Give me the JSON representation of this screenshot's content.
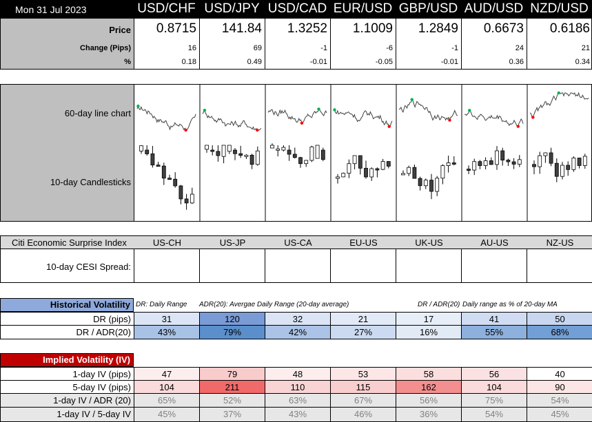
{
  "header": {
    "date": "Mon 31 Jul 2023",
    "pairs": [
      "USD/CHF",
      "USD/JPY",
      "USD/CAD",
      "EUR/USD",
      "GBP/USD",
      "AUD/USD",
      "NZD/USD"
    ]
  },
  "price_table": {
    "price_label": "Price",
    "change_label": "Change (Pips)",
    "pct_label": "%",
    "prices": [
      "0.8715",
      "141.84",
      "1.3252",
      "1.1009",
      "1.2849",
      "0.6673",
      "0.6186"
    ],
    "changes": [
      "16",
      "69",
      "-1",
      "-6",
      "-1",
      "24",
      "21"
    ],
    "pcts": [
      "0.18",
      "0.49",
      "-0.01",
      "-0.05",
      "-0.01",
      "0.36",
      "0.34"
    ]
  },
  "charts_section": {
    "line_label": "60-day line chart",
    "candle_label": "10-day Candlesticks",
    "line_color": "#404040",
    "high_marker_color": "#00b050",
    "low_marker_color": "#ff0000"
  },
  "cesi": {
    "title": "Citi Economic Surprise Index",
    "spread_label": "10-day CESI Spread:",
    "pairs": [
      "US-CH",
      "US-JP",
      "US-CA",
      "EU-US",
      "UK-US",
      "AU-US",
      "NZ-US"
    ],
    "bar_color": "#a6a6a6"
  },
  "historical_volatility": {
    "title": "Historical Volatility",
    "note_dr": "DR: Daily Range",
    "note_adr": "ADR(20): Avergae Daily Range (20-day average)",
    "note_ratio": "DR / ADR(20)",
    "note_ratio_desc": "Daily range as % of 20-day MA",
    "dr_label": "DR (pips)",
    "ratio_label": "DR / ADR(20)",
    "dr_values": [
      "31",
      "120",
      "32",
      "21",
      "17",
      "41",
      "50"
    ],
    "ratio_values": [
      "43%",
      "79%",
      "42%",
      "27%",
      "16%",
      "55%",
      "68%"
    ],
    "dr_colors": [
      "#dbe5f5",
      "#7a9bd6",
      "#dae4f5",
      "#e3eaf7",
      "#e8eef8",
      "#d0dcf2",
      "#c8d6ef"
    ],
    "ratio_colors": [
      "#a8c2e6",
      "#5b8fcc",
      "#aac3e6",
      "#cbdaf0",
      "#e2eaf6",
      "#8db0dd",
      "#729fd5"
    ]
  },
  "implied_volatility": {
    "title": "Implied Volatility (IV)",
    "iv1_label": "1-day IV (pips)",
    "iv5_label": "5-day IV (pips)",
    "ratio_adr_label": "1-day IV / ADR (20)",
    "ratio_5d_label": "1-day IV / 5-day IV",
    "iv1_values": [
      "47",
      "79",
      "48",
      "53",
      "58",
      "56",
      "40"
    ],
    "iv5_values": [
      "104",
      "211",
      "110",
      "115",
      "162",
      "104",
      "90"
    ],
    "ratio_adr_values": [
      "65%",
      "52%",
      "63%",
      "67%",
      "56%",
      "75%",
      "54%"
    ],
    "ratio_5d_values": [
      "45%",
      "37%",
      "43%",
      "46%",
      "36%",
      "54%",
      "45%"
    ],
    "iv1_colors": [
      "#fdeeee",
      "#f9cccc",
      "#fdeded",
      "#fce6e6",
      "#fbdede",
      "#fbe2e2",
      "#ffffff"
    ],
    "iv5_colors": [
      "#fadada",
      "#f06a6a",
      "#f9d4d4",
      "#f8cece",
      "#f48f8f",
      "#fadada",
      "#fbe5e5"
    ],
    "gray_bg": "#e7e7e7"
  }
}
